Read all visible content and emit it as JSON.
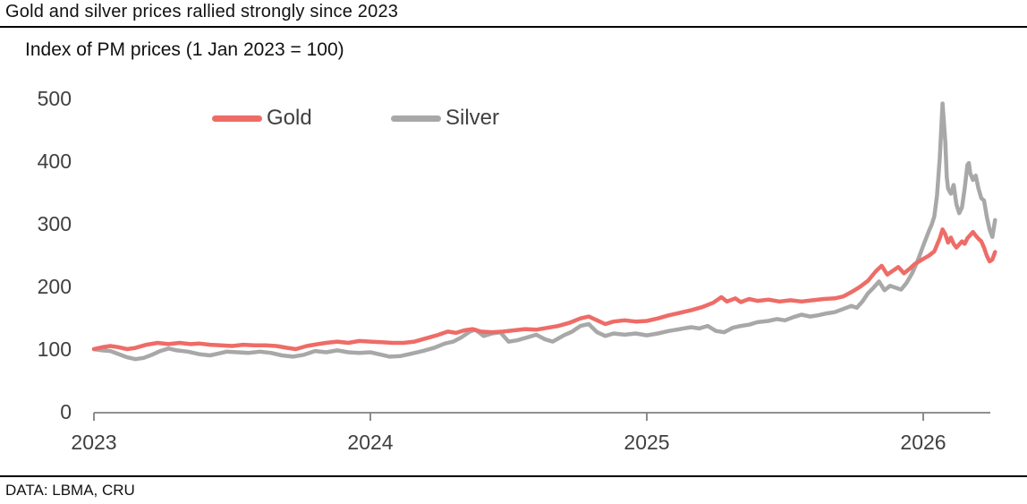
{
  "header": {
    "title": "Gold and silver prices rallied strongly since 2023"
  },
  "subtitle": "Index of PM prices (1 Jan 2023 = 100)",
  "footer": {
    "source": "DATA: LBMA, CRU"
  },
  "legend": [
    {
      "label": "Gold",
      "color": "#ee6c67"
    },
    {
      "label": "Silver",
      "color": "#a8a8a8"
    }
  ],
  "colors": {
    "gold": "#ee6c67",
    "silver": "#a8a8a8",
    "axis": "#808080",
    "tick_label": "#404040",
    "text": "#111111"
  },
  "chart_data": {
    "type": "line",
    "title": "Index of PM prices (1 Jan 2023 = 100)",
    "xlabel": "",
    "ylabel": "",
    "xlim": [
      2023,
      2026.3
    ],
    "ylim": [
      0,
      500
    ],
    "x_ticks": [
      2023,
      2024,
      2025,
      2026
    ],
    "y_ticks": [
      0,
      100,
      200,
      300,
      400,
      500
    ],
    "grid": false,
    "legend_position": "top-inside",
    "series": [
      {
        "name": "Silver",
        "color": "#a8a8a8",
        "x": [
          2023.0,
          2023.03,
          2023.06,
          2023.09,
          2023.12,
          2023.15,
          2023.18,
          2023.21,
          2023.24,
          2023.27,
          2023.3,
          2023.34,
          2023.38,
          2023.42,
          2023.45,
          2023.48,
          2023.52,
          2023.56,
          2023.6,
          2023.64,
          2023.68,
          2023.72,
          2023.76,
          2023.8,
          2023.84,
          2023.88,
          2023.92,
          2023.96,
          2024.0,
          2024.04,
          2024.07,
          2024.11,
          2024.15,
          2024.19,
          2024.23,
          2024.27,
          2024.3,
          2024.33,
          2024.36,
          2024.38,
          2024.41,
          2024.44,
          2024.47,
          2024.5,
          2024.53,
          2024.57,
          2024.6,
          2024.63,
          2024.66,
          2024.7,
          2024.73,
          2024.76,
          2024.79,
          2024.82,
          2024.85,
          2024.88,
          2024.92,
          2024.96,
          2025.0,
          2025.04,
          2025.08,
          2025.12,
          2025.16,
          2025.19,
          2025.22,
          2025.25,
          2025.28,
          2025.31,
          2025.34,
          2025.37,
          2025.4,
          2025.44,
          2025.47,
          2025.5,
          2025.53,
          2025.56,
          2025.59,
          2025.62,
          2025.65,
          2025.68,
          2025.71,
          2025.74,
          2025.76,
          2025.78,
          2025.8,
          2025.82,
          2025.84,
          2025.86,
          2025.88,
          2025.9,
          2025.92,
          2025.94,
          2025.96,
          2025.98,
          2026.0,
          2026.02,
          2026.03,
          2026.04,
          2026.05,
          2026.06,
          2026.07,
          2026.08,
          2026.085,
          2026.09,
          2026.1,
          2026.11,
          2026.12,
          2026.13,
          2026.14,
          2026.15,
          2026.16,
          2026.165,
          2026.17,
          2026.18,
          2026.19,
          2026.2,
          2026.21,
          2026.22,
          2026.23,
          2026.24,
          2026.25,
          2026.26
        ],
        "values": [
          100,
          98,
          97,
          92,
          87,
          84,
          86,
          91,
          97,
          101,
          98,
          96,
          92,
          90,
          93,
          96,
          95,
          94,
          96,
          94,
          90,
          88,
          91,
          97,
          95,
          98,
          95,
          94,
          95,
          91,
          88,
          89,
          93,
          97,
          102,
          109,
          112,
          119,
          128,
          131,
          121,
          125,
          127,
          112,
          114,
          119,
          123,
          116,
          112,
          122,
          128,
          137,
          140,
          127,
          121,
          125,
          123,
          125,
          122,
          125,
          129,
          132,
          135,
          133,
          137,
          129,
          127,
          134,
          137,
          139,
          143,
          145,
          148,
          146,
          151,
          155,
          152,
          154,
          157,
          159,
          164,
          169,
          166,
          176,
          189,
          198,
          208,
          194,
          201,
          198,
          195,
          206,
          221,
          241,
          265,
          288,
          298,
          312,
          345,
          405,
          492,
          430,
          375,
          356,
          348,
          362,
          331,
          317,
          326,
          357,
          394,
          397,
          381,
          370,
          377,
          356,
          341,
          337,
          311,
          291,
          279,
          306
        ]
      },
      {
        "name": "Gold",
        "color": "#ee6c67",
        "x": [
          2023.0,
          2023.03,
          2023.06,
          2023.09,
          2023.12,
          2023.15,
          2023.19,
          2023.23,
          2023.27,
          2023.31,
          2023.35,
          2023.38,
          2023.42,
          2023.46,
          2023.5,
          2023.54,
          2023.58,
          2023.62,
          2023.66,
          2023.7,
          2023.73,
          2023.77,
          2023.81,
          2023.84,
          2023.88,
          2023.92,
          2023.96,
          2024.0,
          2024.04,
          2024.08,
          2024.12,
          2024.16,
          2024.2,
          2024.24,
          2024.28,
          2024.31,
          2024.34,
          2024.37,
          2024.4,
          2024.44,
          2024.48,
          2024.52,
          2024.56,
          2024.6,
          2024.64,
          2024.68,
          2024.72,
          2024.76,
          2024.79,
          2024.82,
          2024.85,
          2024.88,
          2024.92,
          2024.96,
          2025.0,
          2025.04,
          2025.08,
          2025.12,
          2025.16,
          2025.2,
          2025.24,
          2025.27,
          2025.29,
          2025.32,
          2025.34,
          2025.37,
          2025.4,
          2025.44,
          2025.48,
          2025.52,
          2025.56,
          2025.6,
          2025.64,
          2025.68,
          2025.71,
          2025.74,
          2025.77,
          2025.8,
          2025.83,
          2025.85,
          2025.87,
          2025.89,
          2025.91,
          2025.93,
          2025.95,
          2025.97,
          2026.0,
          2026.02,
          2026.04,
          2026.06,
          2026.07,
          2026.08,
          2026.09,
          2026.1,
          2026.11,
          2026.12,
          2026.14,
          2026.15,
          2026.16,
          2026.18,
          2026.19,
          2026.2,
          2026.21,
          2026.22,
          2026.23,
          2026.24,
          2026.25,
          2026.26
        ],
        "values": [
          100,
          103,
          105,
          103,
          100,
          102,
          107,
          110,
          108,
          110,
          108,
          109,
          107,
          106,
          105,
          107,
          106,
          106,
          105,
          102,
          100,
          105,
          108,
          110,
          112,
          110,
          113,
          112,
          111,
          110,
          110,
          112,
          117,
          122,
          128,
          126,
          130,
          132,
          128,
          127,
          128,
          130,
          132,
          131,
          134,
          137,
          142,
          149,
          152,
          146,
          140,
          144,
          146,
          144,
          145,
          149,
          154,
          158,
          162,
          167,
          174,
          183,
          176,
          181,
          175,
          180,
          177,
          179,
          176,
          178,
          176,
          178,
          180,
          181,
          184,
          191,
          199,
          209,
          225,
          233,
          219,
          225,
          231,
          221,
          228,
          236,
          244,
          249,
          256,
          277,
          291,
          283,
          270,
          278,
          268,
          262,
          272,
          268,
          277,
          287,
          281,
          276,
          272,
          262,
          249,
          240,
          243,
          255
        ]
      }
    ]
  }
}
